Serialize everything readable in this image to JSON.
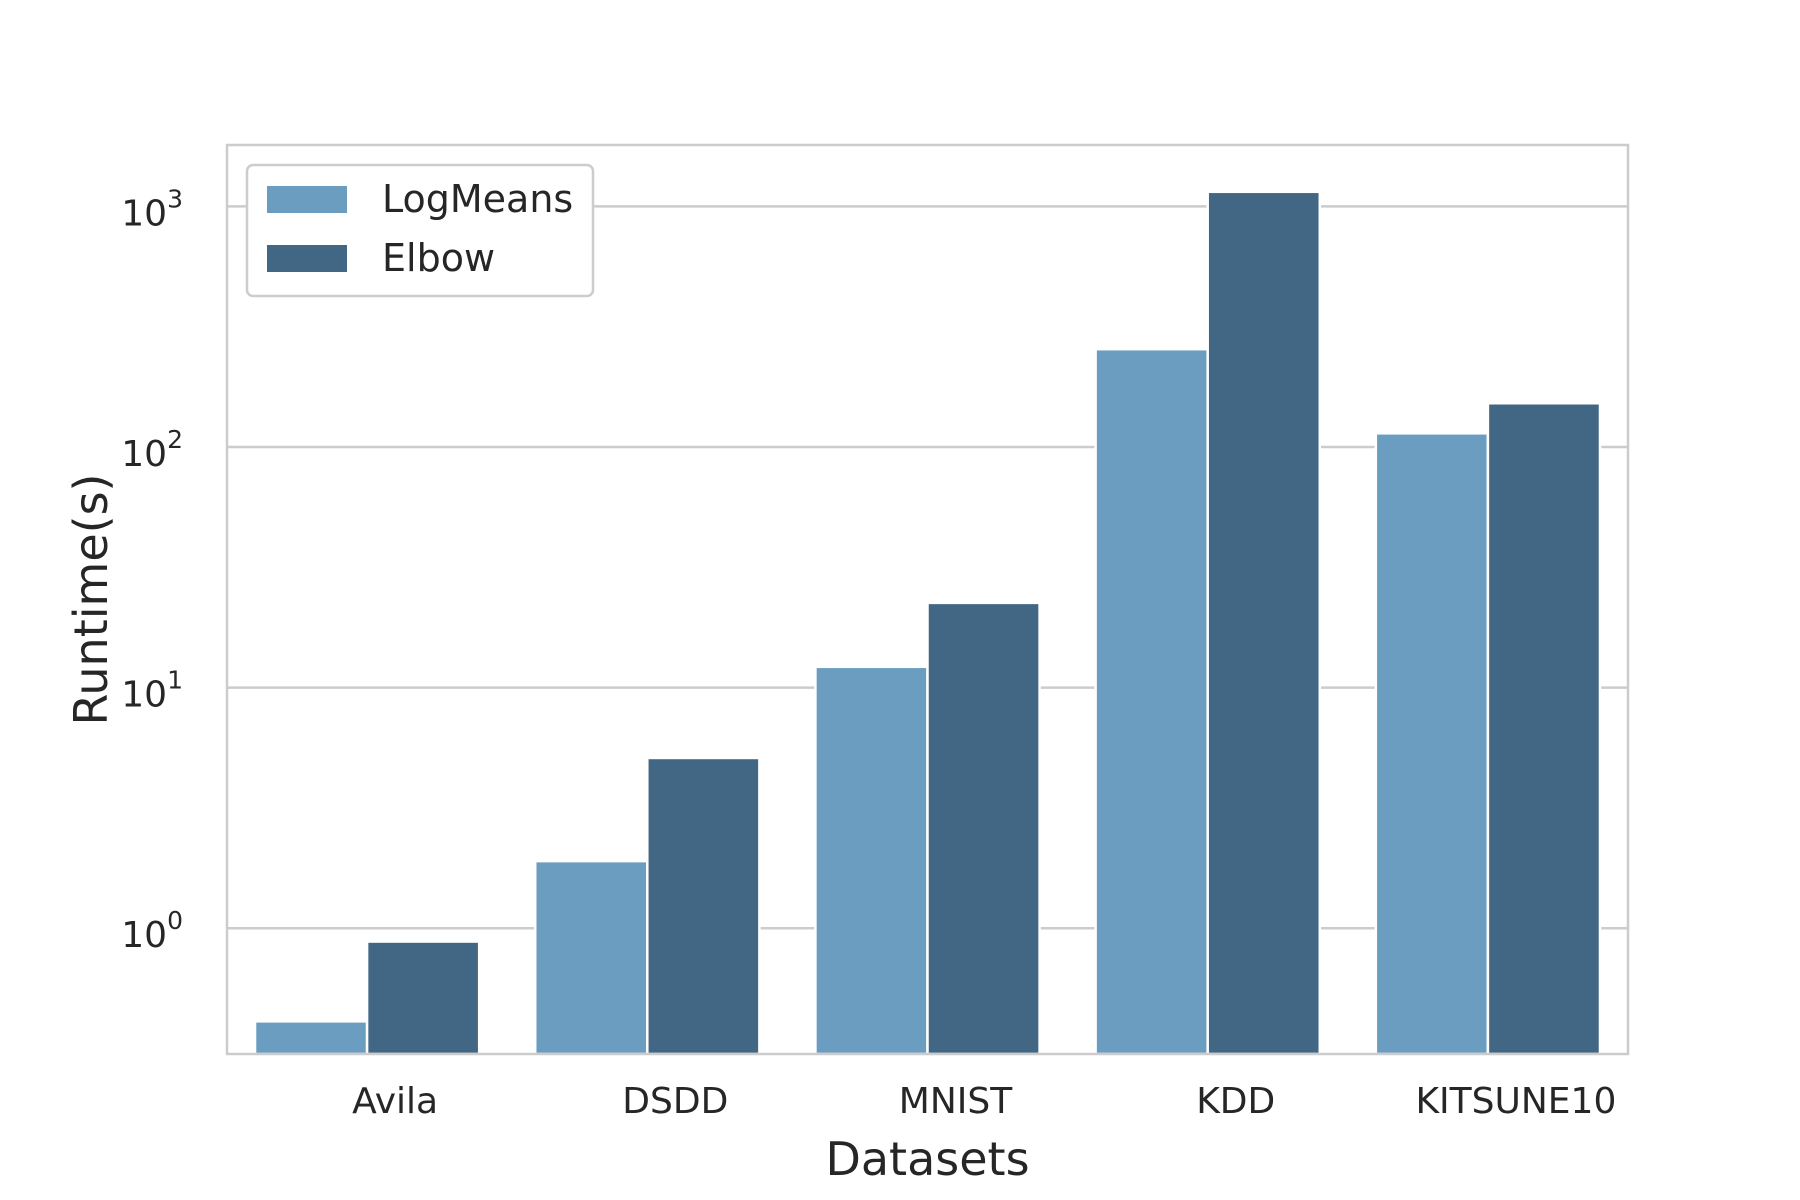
{
  "chart_data": {
    "type": "bar",
    "xlabel": "Datasets",
    "ylabel": "Runtime(s)",
    "yscale": "log",
    "ylim": [
      0.3,
      1800
    ],
    "grid": "horizontal",
    "legend_placement": "top-left",
    "categories": [
      "Avila",
      "DSDD",
      "MNIST",
      "KDD",
      "KITSUNE10"
    ],
    "y_ticks": [
      {
        "value": 1,
        "base": "10",
        "exp": "0"
      },
      {
        "value": 10,
        "base": "10",
        "exp": "1"
      },
      {
        "value": 100,
        "base": "10",
        "exp": "2"
      },
      {
        "value": 1000,
        "base": "10",
        "exp": "3"
      }
    ],
    "series": [
      {
        "name": "LogMeans",
        "color": "#6b9dc0",
        "values": [
          0.41,
          1.9,
          12.2,
          255,
          114
        ]
      },
      {
        "name": "Elbow",
        "color": "#426784",
        "values": [
          0.88,
          5.1,
          22.5,
          1150,
          152
        ]
      }
    ]
  }
}
